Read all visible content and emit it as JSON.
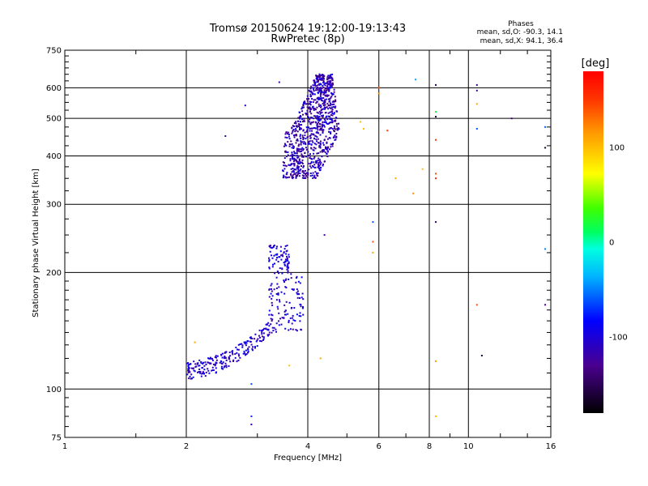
{
  "chart_data": {
    "type": "scatter",
    "title": "Tromsø 20150624 19:12:00-19:13:43",
    "subtitle": "RwPretec (8p)",
    "xlabel": "Frequency [MHz]",
    "ylabel": "Stationary phase Virtual Height [km]",
    "x_scale": "log",
    "y_scale": "log",
    "xlim": [
      1,
      16
    ],
    "ylim": [
      75,
      750
    ],
    "x_ticks": [
      1,
      2,
      4,
      6,
      8,
      10,
      16
    ],
    "y_ticks": [
      75,
      100,
      200,
      300,
      400,
      500,
      600,
      750
    ],
    "grid": true,
    "phases_box": {
      "title": "Phases",
      "line_o": "mean, sd,O: -90.3, 14.1",
      "line_x": "mean, sd,X:  94.1, 36.4"
    },
    "colorbar": {
      "label": "[deg]",
      "range": [
        -180,
        180
      ],
      "ticks": [
        -100,
        0,
        100
      ]
    },
    "clusters": [
      {
        "region": "F-layer trace",
        "x_range": [
          3.5,
          5.0
        ],
        "y_range": [
          350,
          650
        ],
        "phase_deg": [
          -140,
          -85
        ]
      },
      {
        "region": "E-F trace",
        "x_range": [
          2.0,
          3.9
        ],
        "y_range": [
          110,
          235
        ],
        "phase_deg": [
          -125,
          -80
        ]
      }
    ],
    "scattered_points": [
      {
        "x": 3.4,
        "y": 620,
        "phase_deg": -120
      },
      {
        "x": 2.8,
        "y": 540,
        "phase_deg": -110
      },
      {
        "x": 2.5,
        "y": 450,
        "phase_deg": -115
      },
      {
        "x": 4.4,
        "y": 250,
        "phase_deg": -120
      },
      {
        "x": 5.8,
        "y": 270,
        "phase_deg": -60
      },
      {
        "x": 5.8,
        "y": 240,
        "phase_deg": 140
      },
      {
        "x": 5.8,
        "y": 225,
        "phase_deg": 110
      },
      {
        "x": 5.5,
        "y": 470,
        "phase_deg": 100
      },
      {
        "x": 6.0,
        "y": 600,
        "phase_deg": 140
      },
      {
        "x": 6.0,
        "y": 580,
        "phase_deg": 120
      },
      {
        "x": 6.3,
        "y": 465,
        "phase_deg": 150
      },
      {
        "x": 6.6,
        "y": 350,
        "phase_deg": 110
      },
      {
        "x": 7.3,
        "y": 320,
        "phase_deg": 120
      },
      {
        "x": 7.4,
        "y": 630,
        "phase_deg": -40
      },
      {
        "x": 7.7,
        "y": 370,
        "phase_deg": 100
      },
      {
        "x": 8.3,
        "y": 610,
        "phase_deg": -150
      },
      {
        "x": 8.3,
        "y": 520,
        "phase_deg": 20
      },
      {
        "x": 8.3,
        "y": 505,
        "phase_deg": -160
      },
      {
        "x": 8.3,
        "y": 440,
        "phase_deg": 150
      },
      {
        "x": 8.3,
        "y": 360,
        "phase_deg": 140
      },
      {
        "x": 8.3,
        "y": 350,
        "phase_deg": 160
      },
      {
        "x": 8.3,
        "y": 270,
        "phase_deg": -140
      },
      {
        "x": 8.3,
        "y": 118,
        "phase_deg": 110
      },
      {
        "x": 8.3,
        "y": 85,
        "phase_deg": 100
      },
      {
        "x": 10.5,
        "y": 610,
        "phase_deg": -140
      },
      {
        "x": 10.5,
        "y": 590,
        "phase_deg": -120
      },
      {
        "x": 10.5,
        "y": 545,
        "phase_deg": 110
      },
      {
        "x": 10.5,
        "y": 470,
        "phase_deg": -60
      },
      {
        "x": 10.5,
        "y": 165,
        "phase_deg": 140
      },
      {
        "x": 10.8,
        "y": 122,
        "phase_deg": -160
      },
      {
        "x": 12.8,
        "y": 500,
        "phase_deg": -130
      },
      {
        "x": 15.5,
        "y": 475,
        "phase_deg": -60
      },
      {
        "x": 15.5,
        "y": 420,
        "phase_deg": -170
      },
      {
        "x": 15.5,
        "y": 230,
        "phase_deg": -50
      },
      {
        "x": 15.5,
        "y": 165,
        "phase_deg": -130
      },
      {
        "x": 3.6,
        "y": 115,
        "phase_deg": 100
      },
      {
        "x": 4.3,
        "y": 120,
        "phase_deg": 110
      },
      {
        "x": 2.9,
        "y": 103,
        "phase_deg": -60
      },
      {
        "x": 2.9,
        "y": 85,
        "phase_deg": -70
      },
      {
        "x": 2.9,
        "y": 81,
        "phase_deg": -120
      },
      {
        "x": 2.1,
        "y": 132,
        "phase_deg": 110
      },
      {
        "x": 5.4,
        "y": 490,
        "phase_deg": 100
      }
    ]
  }
}
